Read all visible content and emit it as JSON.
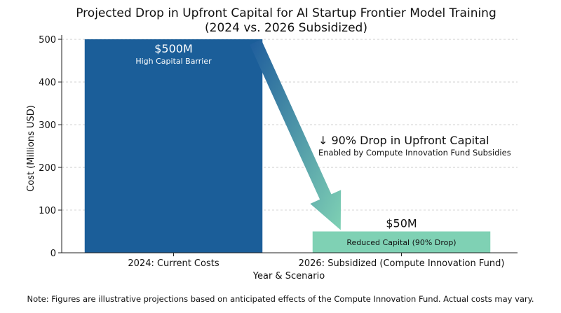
{
  "chart_data": {
    "type": "bar",
    "title_line1": "Projected Drop in Upfront Capital for AI Startup Frontier Model Training",
    "title_line2": "(2024 vs. 2026 Subsidized)",
    "xlabel": "Year & Scenario",
    "ylabel": "Cost (Millions USD)",
    "ylim": [
      0,
      510
    ],
    "yticks": [
      0,
      100,
      200,
      300,
      400,
      500
    ],
    "grid": "horizontal dashed",
    "categories": [
      "2024: Current Costs",
      "2026: Subsidized (Compute Innovation Fund)"
    ],
    "values": [
      500,
      50
    ],
    "colors": [
      "#1b5e99",
      "#7fd1b4"
    ],
    "bar_labels": [
      {
        "value_text": "$500M",
        "sub_text": "High Capital Barrier"
      },
      {
        "value_text": "$50M",
        "sub_text": "Reduced Capital (90% Drop)"
      }
    ],
    "annotation": {
      "headline": "↓ 90% Drop in Upfront Capital",
      "subline": "Enabled by Compute Innovation Fund Subsidies"
    },
    "arrow_colors": {
      "start": "#1e5c9c",
      "end": "#7fd1b4"
    }
  },
  "note": "Note: Figures are illustrative projections based on anticipated effects of the Compute Innovation Fund. Actual costs may vary."
}
